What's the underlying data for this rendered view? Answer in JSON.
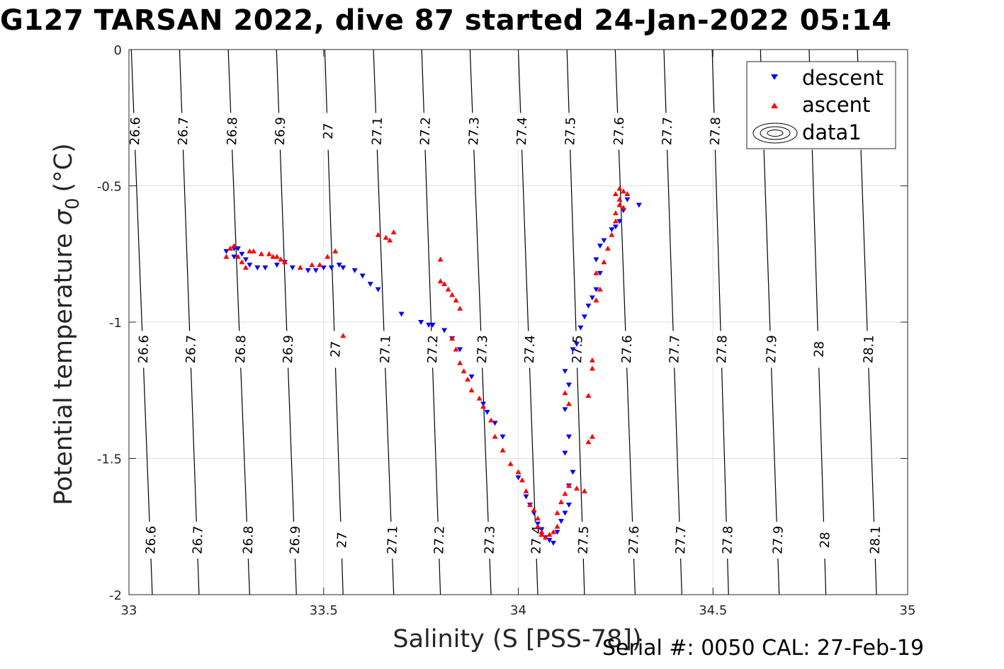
{
  "title": "G127 TARSAN 2022, dive 87 started 24-Jan-2022 05:14",
  "footer": "Serial #: 0050  CAL: 27-Feb-19",
  "chart_data": {
    "type": "scatter",
    "xlabel": "Salinity (S [PSS-78])",
    "ylabel": "Potential temperature",
    "ylabel_sub": "0",
    "ylabel_unit": "(°C)",
    "xlim": [
      33,
      35
    ],
    "ylim": [
      -2,
      0
    ],
    "x_ticks": [
      "33",
      "33.5",
      "34",
      "34.5",
      "35"
    ],
    "y_ticks": [
      "0",
      "-0.5",
      "-1",
      "-1.5",
      "-2"
    ],
    "grid": true,
    "legend": {
      "placement": "top-right",
      "entries": [
        "descent",
        "ascent",
        "data1"
      ]
    },
    "contours": {
      "label": "data1",
      "levels": [
        26.6,
        26.7,
        26.8,
        26.9,
        27,
        27.1,
        27.2,
        27.3,
        27.4,
        27.5,
        27.6,
        27.7,
        27.8,
        27.9,
        28,
        28.1
      ],
      "level_labels": [
        "26.6",
        "26.7",
        "26.8",
        "26.9",
        "27",
        "27.1",
        "27.2",
        "27.3",
        "27.4",
        "27.5",
        "27.6",
        "27.7",
        "27.8",
        "27.9",
        "28",
        "28.1"
      ],
      "salinity_at_0C": [
        33.006,
        33.13,
        33.255,
        33.379,
        33.503,
        33.628,
        33.752,
        33.876,
        34.0,
        34.125,
        34.249,
        34.374,
        34.498,
        34.622,
        34.747,
        34.871
      ],
      "salinity_at_minus2C": [
        33.06,
        33.18,
        33.31,
        33.43,
        33.55,
        33.68,
        33.8,
        33.93,
        34.05,
        34.17,
        34.3,
        34.42,
        34.54,
        34.67,
        34.79,
        34.92
      ]
    },
    "series": [
      {
        "name": "descent",
        "color": "#0000ff",
        "marker": "triangle-down",
        "points": [
          [
            33.25,
            -0.74
          ],
          [
            33.27,
            -0.73
          ],
          [
            33.28,
            -0.73
          ],
          [
            33.29,
            -0.75
          ],
          [
            33.27,
            -0.76
          ],
          [
            33.3,
            -0.77
          ],
          [
            33.31,
            -0.79
          ],
          [
            33.33,
            -0.8
          ],
          [
            33.35,
            -0.8
          ],
          [
            33.38,
            -0.79
          ],
          [
            33.4,
            -0.78
          ],
          [
            33.42,
            -0.8
          ],
          [
            33.46,
            -0.81
          ],
          [
            33.48,
            -0.81
          ],
          [
            33.5,
            -0.8
          ],
          [
            33.52,
            -0.8
          ],
          [
            33.54,
            -0.79
          ],
          [
            33.55,
            -0.8
          ],
          [
            33.58,
            -0.81
          ],
          [
            33.6,
            -0.83
          ],
          [
            33.62,
            -0.86
          ],
          [
            33.64,
            -0.88
          ],
          [
            33.7,
            -0.97
          ],
          [
            33.75,
            -1.0
          ],
          [
            33.77,
            -1.01
          ],
          [
            33.78,
            -1.01
          ],
          [
            33.81,
            -1.03
          ],
          [
            33.83,
            -1.06
          ],
          [
            33.85,
            -1.1
          ],
          [
            33.88,
            -1.2
          ],
          [
            33.91,
            -1.3
          ],
          [
            33.92,
            -1.33
          ],
          [
            33.94,
            -1.37
          ],
          [
            33.96,
            -1.42
          ],
          [
            34.0,
            -1.57
          ],
          [
            34.02,
            -1.64
          ],
          [
            34.03,
            -1.67
          ],
          [
            34.04,
            -1.7
          ],
          [
            34.05,
            -1.74
          ],
          [
            34.06,
            -1.76
          ],
          [
            34.07,
            -1.79
          ],
          [
            34.08,
            -1.8
          ],
          [
            34.09,
            -1.81
          ],
          [
            34.1,
            -1.77
          ],
          [
            34.11,
            -1.73
          ],
          [
            34.12,
            -1.7
          ],
          [
            34.13,
            -1.67
          ],
          [
            34.13,
            -1.6
          ],
          [
            34.14,
            -1.55
          ],
          [
            34.12,
            -1.48
          ],
          [
            34.13,
            -1.42
          ],
          [
            34.12,
            -1.32
          ],
          [
            34.13,
            -1.23
          ],
          [
            34.12,
            -1.18
          ],
          [
            34.14,
            -1.1
          ],
          [
            34.15,
            -1.08
          ],
          [
            34.16,
            -1.02
          ],
          [
            34.17,
            -0.98
          ],
          [
            34.18,
            -0.94
          ],
          [
            34.19,
            -0.91
          ],
          [
            34.2,
            -0.88
          ],
          [
            34.21,
            -0.82
          ],
          [
            34.2,
            -0.77
          ],
          [
            34.21,
            -0.72
          ],
          [
            34.22,
            -0.7
          ],
          [
            34.24,
            -0.66
          ],
          [
            34.25,
            -0.65
          ],
          [
            34.26,
            -0.63
          ],
          [
            34.27,
            -0.59
          ],
          [
            34.28,
            -0.55
          ],
          [
            34.31,
            -0.57
          ]
        ]
      },
      {
        "name": "ascent",
        "color": "#ff0000",
        "marker": "triangle-up",
        "points": [
          [
            33.25,
            -0.76
          ],
          [
            33.26,
            -0.73
          ],
          [
            33.27,
            -0.72
          ],
          [
            33.28,
            -0.76
          ],
          [
            33.29,
            -0.78
          ],
          [
            33.3,
            -0.8
          ],
          [
            33.31,
            -0.74
          ],
          [
            33.32,
            -0.74
          ],
          [
            33.34,
            -0.75
          ],
          [
            33.36,
            -0.75
          ],
          [
            33.37,
            -0.76
          ],
          [
            33.38,
            -0.76
          ],
          [
            33.39,
            -0.77
          ],
          [
            33.4,
            -0.78
          ],
          [
            33.44,
            -0.8
          ],
          [
            33.47,
            -0.79
          ],
          [
            33.49,
            -0.79
          ],
          [
            33.51,
            -0.76
          ],
          [
            33.53,
            -0.74
          ],
          [
            33.64,
            -0.68
          ],
          [
            33.66,
            -0.69
          ],
          [
            33.67,
            -0.7
          ],
          [
            33.68,
            -0.67
          ],
          [
            33.55,
            -1.05
          ],
          [
            33.8,
            -0.77
          ],
          [
            33.8,
            -0.85
          ],
          [
            33.81,
            -0.86
          ],
          [
            33.82,
            -0.88
          ],
          [
            33.83,
            -0.9
          ],
          [
            33.84,
            -0.92
          ],
          [
            33.85,
            -0.95
          ],
          [
            33.83,
            -1.06
          ],
          [
            33.84,
            -1.1
          ],
          [
            33.85,
            -1.15
          ],
          [
            33.86,
            -1.18
          ],
          [
            33.87,
            -1.21
          ],
          [
            33.88,
            -1.25
          ],
          [
            33.9,
            -1.28
          ],
          [
            33.91,
            -1.31
          ],
          [
            33.93,
            -1.36
          ],
          [
            33.94,
            -1.42
          ],
          [
            33.96,
            -1.47
          ],
          [
            33.98,
            -1.52
          ],
          [
            34.0,
            -1.55
          ],
          [
            34.01,
            -1.58
          ],
          [
            34.02,
            -1.62
          ],
          [
            34.03,
            -1.67
          ],
          [
            34.04,
            -1.69
          ],
          [
            34.05,
            -1.72
          ],
          [
            34.05,
            -1.75
          ],
          [
            34.06,
            -1.77
          ],
          [
            34.06,
            -1.78
          ],
          [
            34.07,
            -1.79
          ],
          [
            34.08,
            -1.78
          ],
          [
            34.09,
            -1.77
          ],
          [
            34.1,
            -1.75
          ],
          [
            34.1,
            -1.7
          ],
          [
            34.11,
            -1.66
          ],
          [
            34.12,
            -1.63
          ],
          [
            34.13,
            -1.6
          ],
          [
            34.15,
            -1.61
          ],
          [
            34.17,
            -1.62
          ],
          [
            34.18,
            -1.44
          ],
          [
            34.19,
            -1.42
          ],
          [
            34.18,
            -1.27
          ],
          [
            34.19,
            -1.17
          ],
          [
            34.19,
            -1.14
          ],
          [
            34.12,
            -1.26
          ],
          [
            34.13,
            -1.3
          ],
          [
            34.2,
            -0.92
          ],
          [
            34.21,
            -0.88
          ],
          [
            34.2,
            -0.82
          ],
          [
            34.22,
            -0.78
          ],
          [
            34.23,
            -0.73
          ],
          [
            34.24,
            -0.68
          ],
          [
            34.25,
            -0.63
          ],
          [
            34.25,
            -0.6
          ],
          [
            34.26,
            -0.57
          ],
          [
            34.25,
            -0.53
          ],
          [
            34.26,
            -0.51
          ],
          [
            34.27,
            -0.52
          ],
          [
            34.28,
            -0.53
          ],
          [
            34.26,
            -0.55
          ],
          [
            34.27,
            -0.58
          ]
        ]
      }
    ]
  }
}
